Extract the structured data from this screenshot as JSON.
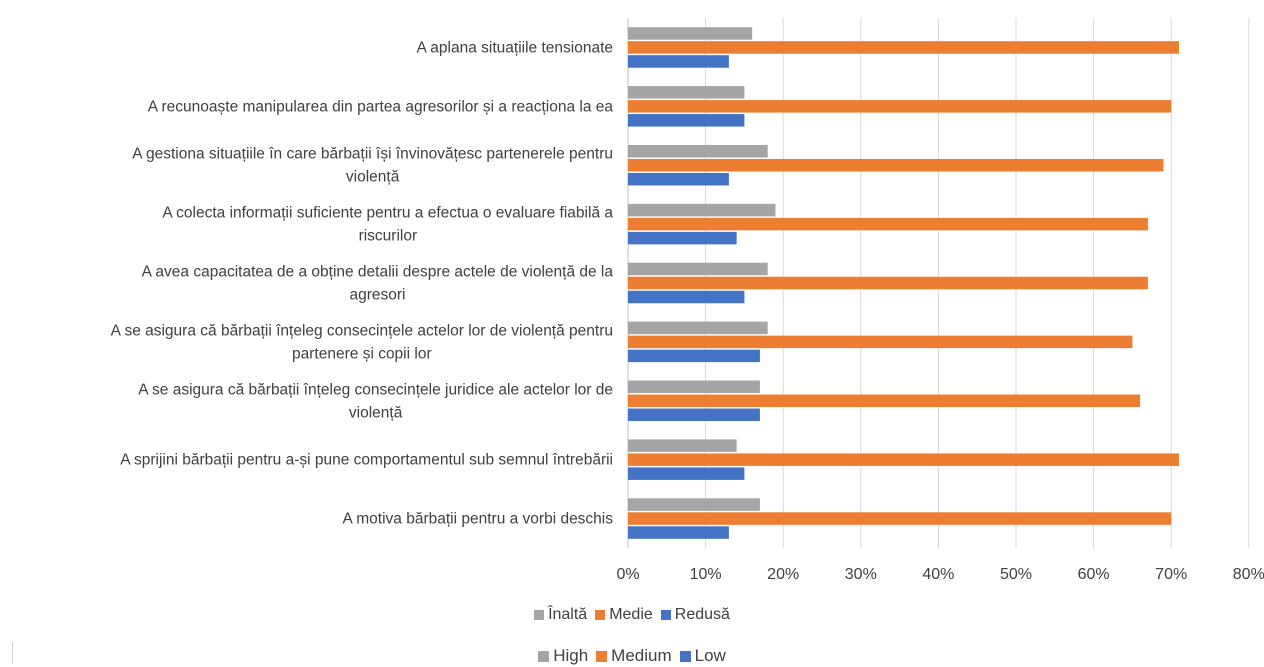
{
  "chart_data": {
    "type": "bar",
    "orientation": "horizontal",
    "categories": [
      [
        "A aplana situațiile tensionate"
      ],
      [
        "A recunoaște manipularea din partea agresorilor și a reacționa la ea"
      ],
      [
        "A gestiona situațiile în care bărbații își învinovățesc partenerele pentru",
        "violență"
      ],
      [
        "A colecta informații suficiente pentru a efectua o evaluare fiabilă a",
        "riscurilor"
      ],
      [
        "A avea capacitatea de a obține detalii despre actele de violență de la",
        "agresori"
      ],
      [
        "A se asigura că bărbații înțeleg consecințele actelor lor de violență pentru",
        "partenere și copii lor"
      ],
      [
        "A se asigura că bărbații înțeleg consecințele juridice ale actelor lor de",
        "violență"
      ],
      [
        "A sprijini bărbații pentru a-și pune comportamentul sub semnul întrebării"
      ],
      [
        "A motiva bărbații pentru a vorbi deschis"
      ]
    ],
    "series": [
      {
        "name": "Înaltă",
        "color": "#a5a5a5",
        "values": [
          16,
          15,
          18,
          19,
          18,
          18,
          17,
          14,
          17
        ]
      },
      {
        "name": "Medie",
        "color": "#ed7d31",
        "values": [
          71,
          70,
          69,
          67,
          67,
          65,
          66,
          71,
          70
        ]
      },
      {
        "name": "Redusă",
        "color": "#4472c4",
        "values": [
          13,
          15,
          13,
          14,
          15,
          17,
          17,
          15,
          13
        ]
      }
    ],
    "xlim": [
      0,
      80
    ],
    "xticks": [
      "0%",
      "10%",
      "20%",
      "30%",
      "40%",
      "50%",
      "60%",
      "70%",
      "80%"
    ],
    "grid": true,
    "legend_position": "bottom"
  },
  "legend_secondary": [
    {
      "name": "High",
      "color": "#a5a5a5"
    },
    {
      "name": "Medium",
      "color": "#ed7d31"
    },
    {
      "name": "Low",
      "color": "#4472c4"
    }
  ]
}
